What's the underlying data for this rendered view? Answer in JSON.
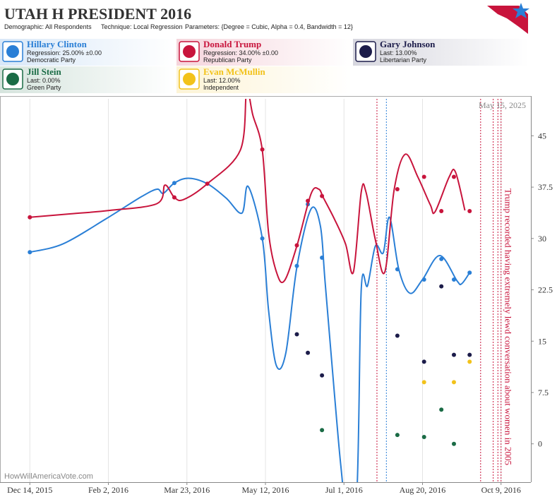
{
  "chart_data": {
    "type": "line",
    "title": "UTAH H PRESIDENT 2016",
    "meta": [
      "Demographic: All Respondents",
      "Technique: Local Regression",
      "Parameters: {Degree = Cubic, Alpha = 0.4, Bandwidth = 12}"
    ],
    "date_stamp": "May 15, 2025",
    "watermark": "HowWillAmericaVote.com",
    "xlim": [
      "2015-11-25",
      "2016-10-28"
    ],
    "xticks": [
      {
        "value": "2015-12-14",
        "label": "Dec 14, 2015"
      },
      {
        "value": "2016-02-02",
        "label": "Feb 2, 2016"
      },
      {
        "value": "2016-03-23",
        "label": "Mar 23, 2016"
      },
      {
        "value": "2016-05-12",
        "label": "May 12, 2016"
      },
      {
        "value": "2016-07-01",
        "label": "Jul 1, 2016"
      },
      {
        "value": "2016-08-20",
        "label": "Aug 20, 2016"
      },
      {
        "value": "2016-10-09",
        "label": "Oct 9, 2016"
      }
    ],
    "ylim": [
      -5.6,
      50.4
    ],
    "yticks": [
      0,
      7.5,
      15,
      22.5,
      30,
      37.5,
      45
    ],
    "grid": true,
    "series": [
      {
        "name": "Hillary Clinton",
        "status": "Regression: 25.00% ±0.00",
        "party": "Democratic Party",
        "color": "#2a7fd6",
        "x": [
          "2015-12-14",
          "2016-01-04",
          "2016-01-31",
          "2016-02-23",
          "2016-03-04",
          "2016-03-08",
          "2016-03-15",
          "2016-03-24",
          "2016-04-05",
          "2016-04-17",
          "2016-04-27",
          "2016-05-01",
          "2016-05-10",
          "2016-05-14",
          "2016-05-19",
          "2016-05-25",
          "2016-06-01",
          "2016-06-10",
          "2016-06-16",
          "2016-06-19",
          "2016-06-25",
          "2016-06-29",
          "2016-07-02",
          "2016-07-09",
          "2016-07-12",
          "2016-07-16",
          "2016-07-21",
          "2016-07-26",
          "2016-07-30",
          "2016-08-05",
          "2016-08-12",
          "2016-08-20",
          "2016-08-31",
          "2016-09-11",
          "2016-09-14",
          "2016-09-19"
        ],
        "values": [
          28.0,
          29.2,
          32.8,
          36.1,
          37.2,
          36.6,
          38.1,
          38.8,
          38.0,
          35.9,
          33.7,
          37.6,
          30.0,
          19.5,
          11.4,
          13.3,
          25.8,
          34.3,
          31.8,
          23.6,
          7.1,
          -3.2,
          -8,
          -8,
          22.6,
          23.1,
          28.9,
          27.9,
          33.1,
          25.4,
          22.0,
          24.0,
          27.5,
          23.8,
          23.4,
          25.0
        ],
        "points": {
          "x": [
            "2015-12-14",
            "2016-03-15",
            "2016-05-10",
            "2016-06-01",
            "2016-06-08",
            "2016-06-17",
            "2016-08-04",
            "2016-08-21",
            "2016-09-01",
            "2016-09-09",
            "2016-09-19"
          ],
          "values": [
            28.0,
            38.1,
            30.0,
            26.0,
            35.0,
            27.2,
            25.5,
            24.0,
            27.0,
            24.0,
            25.0
          ]
        }
      },
      {
        "name": "Donald Trump",
        "status": "Regression: 34.00% ±0.00",
        "party": "Republican Party",
        "color": "#c8143c",
        "x": [
          "2015-12-14",
          "2016-01-09",
          "2016-02-03",
          "2016-03-04",
          "2016-03-09",
          "2016-03-15",
          "2016-03-21",
          "2016-04-05",
          "2016-04-26",
          "2016-04-30",
          "2016-05-04",
          "2016-05-10",
          "2016-05-14",
          "2016-05-19",
          "2016-05-24",
          "2016-06-01",
          "2016-06-10",
          "2016-06-15",
          "2016-06-18",
          "2016-06-25",
          "2016-07-02",
          "2016-07-07",
          "2016-07-12",
          "2016-07-15",
          "2016-07-21",
          "2016-07-27",
          "2016-08-02",
          "2016-08-09",
          "2016-08-17",
          "2016-08-25",
          "2016-08-28",
          "2016-09-06",
          "2016-09-10",
          "2016-09-16"
        ],
        "values": [
          33.1,
          33.6,
          34.1,
          35.1,
          37.8,
          36.0,
          35.7,
          38.0,
          42.9,
          51.5,
          48.0,
          42.9,
          30.8,
          25.1,
          23.8,
          28.9,
          36.5,
          37.2,
          35.9,
          32.8,
          29.2,
          25.1,
          36.8,
          36.8,
          29.8,
          25.1,
          37.2,
          42.3,
          39.0,
          34.9,
          33.9,
          39.0,
          39.7,
          34.1
        ],
        "points": {
          "x": [
            "2015-12-14",
            "2016-03-15",
            "2016-04-05",
            "2016-05-10",
            "2016-06-01",
            "2016-06-08",
            "2016-06-17",
            "2016-08-04",
            "2016-08-21",
            "2016-09-01",
            "2016-09-09",
            "2016-09-19"
          ],
          "values": [
            33.1,
            36.0,
            38.0,
            43.0,
            29.0,
            35.5,
            36.2,
            37.2,
            39.0,
            34.0,
            39.0,
            34.0
          ]
        }
      },
      {
        "name": "Gary Johnson",
        "status": "Last: 13.00%",
        "party": "Libertarian Party",
        "color": "#1c1c4a",
        "points": {
          "x": [
            "2016-06-01",
            "2016-06-08",
            "2016-06-17",
            "2016-08-04",
            "2016-08-21",
            "2016-09-01",
            "2016-09-09",
            "2016-09-19"
          ],
          "values": [
            16.0,
            13.3,
            10.0,
            15.8,
            12.0,
            23.0,
            13.0,
            13.0
          ]
        }
      },
      {
        "name": "Jill Stein",
        "status": "Last: 0.00%",
        "party": "Green Party",
        "color": "#1a6b45",
        "points": {
          "x": [
            "2016-06-17",
            "2016-08-04",
            "2016-08-21",
            "2016-09-01",
            "2016-09-09"
          ],
          "values": [
            2.0,
            1.3,
            1.0,
            5.0,
            0.0
          ]
        }
      },
      {
        "name": "Evan McMullin",
        "status": "Last: 12.00%",
        "party": "Independent",
        "color": "#f2c21a",
        "points": {
          "x": [
            "2016-08-21",
            "2016-09-09",
            "2016-09-19"
          ],
          "values": [
            9.0,
            9.0,
            12.0
          ]
        }
      }
    ],
    "events": [
      {
        "x": "2016-07-22",
        "color": "#c8143c"
      },
      {
        "x": "2016-07-28",
        "color": "#2a7fd6"
      },
      {
        "x": "2016-09-26",
        "color": "#c8143c"
      },
      {
        "x": "2016-10-04",
        "color": "#c8143c"
      },
      {
        "x": "2016-10-07",
        "color": "#c8143c"
      },
      {
        "x": "2016-10-09",
        "color": "#c8143c"
      }
    ],
    "annotation": {
      "x": "2016-10-07",
      "text": "Trump recorded having extremely lewd conversation about women in 2005",
      "color": "#c8143c"
    }
  }
}
